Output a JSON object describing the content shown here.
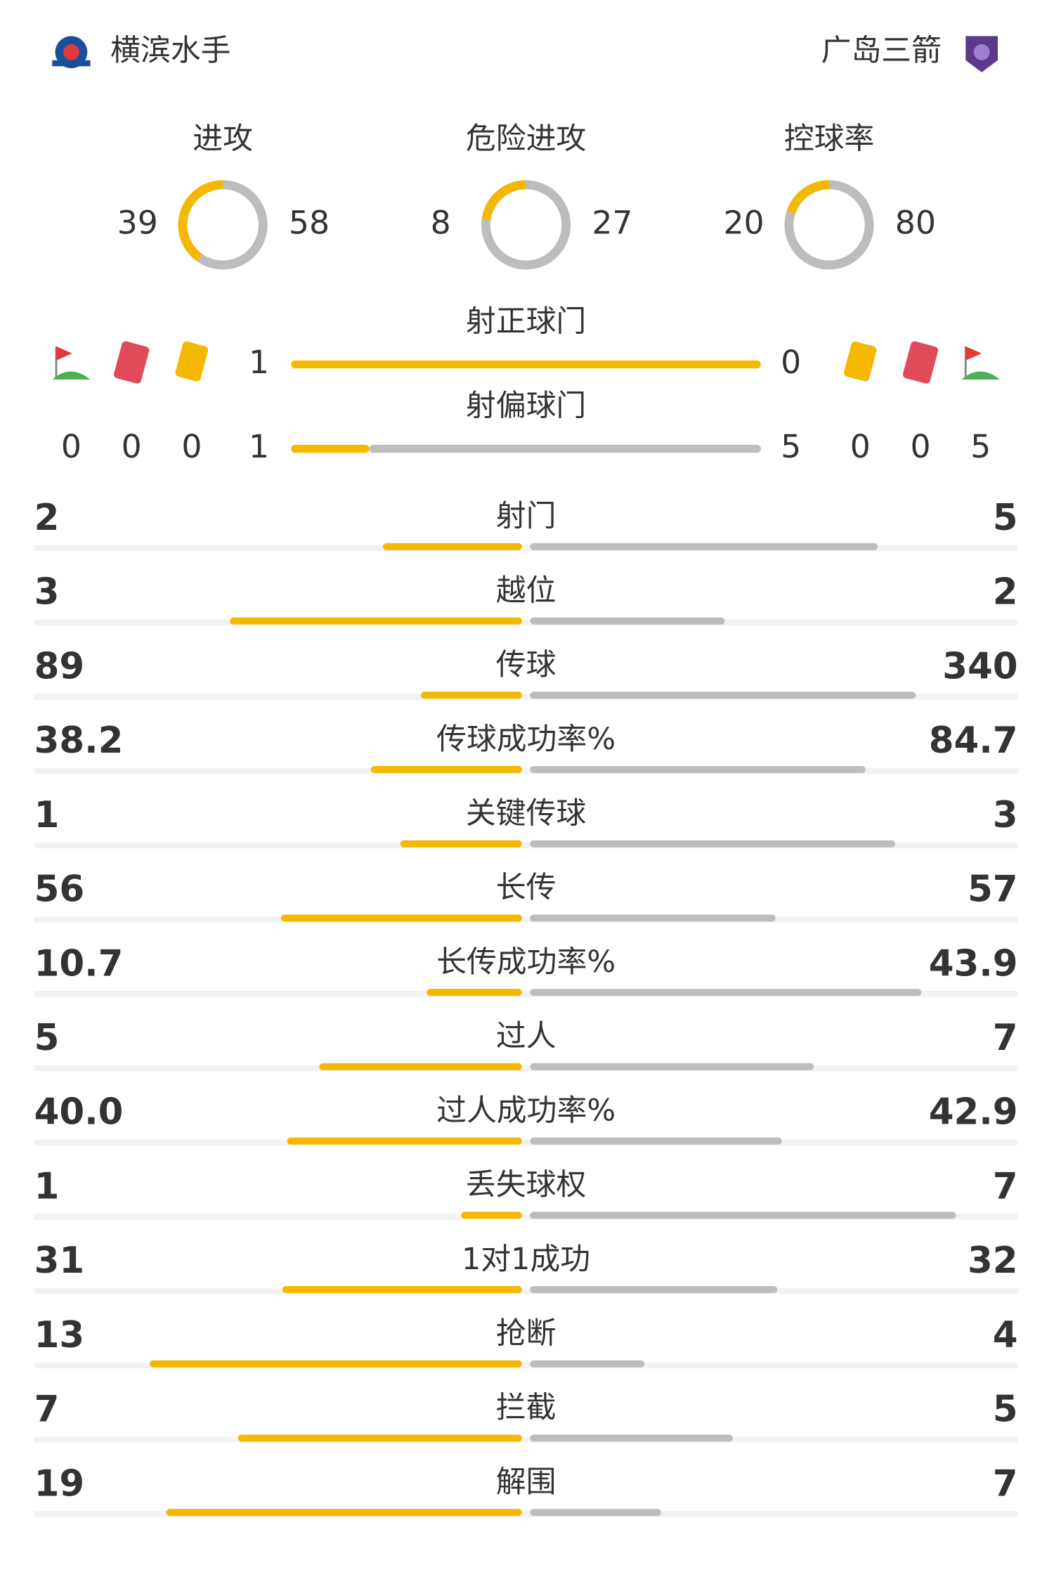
{
  "header": {
    "home": "横滨水手",
    "away": "广岛三箭"
  },
  "rings": [
    {
      "label": "进攻",
      "home": 39,
      "away": 58
    },
    {
      "label": "危险进攻",
      "home": 8,
      "away": 27
    },
    {
      "label": "控球率",
      "home": 20,
      "away": 80
    }
  ],
  "shots": [
    {
      "label": "射正球门",
      "home": 1,
      "away": 0
    },
    {
      "label": "射偏球门",
      "home": 1,
      "away": 5
    }
  ],
  "cards": {
    "home": {
      "corners": 0,
      "red": 0,
      "yellow": 0
    },
    "away": {
      "yellow": 0,
      "red": 0,
      "corners": 5
    }
  },
  "stats": [
    {
      "label": "射门",
      "home": 2,
      "away": 5
    },
    {
      "label": "越位",
      "home": 3,
      "away": 2
    },
    {
      "label": "传球",
      "home": 89,
      "away": 340
    },
    {
      "label": "传球成功率%",
      "home": 38.2,
      "away": 84.7
    },
    {
      "label": "关键传球",
      "home": 1,
      "away": 3
    },
    {
      "label": "长传",
      "home": 56,
      "away": 57
    },
    {
      "label": "长传成功率%",
      "home": 10.7,
      "away": 43.9
    },
    {
      "label": "过人",
      "home": 5,
      "away": 7
    },
    {
      "label": "过人成功率%",
      "home": 40,
      "home_label": "40.0",
      "away": 42.9
    },
    {
      "label": "丢失球权",
      "home": 1,
      "away": 7
    },
    {
      "label": "1对1成功",
      "home": 31,
      "away": 32
    },
    {
      "label": "抢断",
      "home": 13,
      "away": 4
    },
    {
      "label": "拦截",
      "home": 7,
      "away": 5
    },
    {
      "label": "解围",
      "home": 19,
      "away": 7
    }
  ]
}
